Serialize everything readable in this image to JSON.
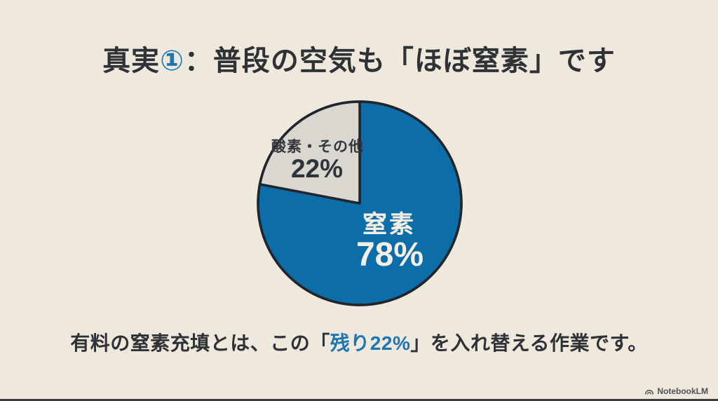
{
  "slide": {
    "title": {
      "prefix": "真実",
      "number": "①",
      "rest": "：普段の空気も「ほぼ窒素」です"
    },
    "caption": {
      "pre": "有料の窒素充填とは、この「",
      "highlight": "残り22%",
      "post": "」を入れ替える作業です。"
    },
    "footer": {
      "brand": "NotebookLM",
      "logo_icon": "notebooklm-arc-icon"
    }
  },
  "colors": {
    "background": "#eee9dc",
    "title_text": "#2e3237",
    "title_number_blue": "#1b76b2",
    "caption_highlight_blue": "#1b76b2",
    "footer_text": "#4d5156",
    "bottom_bar": "#3f3e39"
  },
  "chart_data": {
    "type": "pie",
    "categories": [
      "窒素",
      "酸素・その他"
    ],
    "values": [
      78,
      22
    ],
    "start_angle_deg": 0,
    "direction": "clockwise",
    "outline_color": "#20262c",
    "outline_width": 3.5,
    "slices": [
      {
        "label": "窒素",
        "pct_label": "78%",
        "value": 78,
        "color": "#0c6da8",
        "label_color": "#f3efe4"
      },
      {
        "label": "酸素・その他",
        "pct_label": "22%",
        "value": 22,
        "color": "#d9d7d0",
        "label_color": "#2f343a"
      }
    ]
  }
}
